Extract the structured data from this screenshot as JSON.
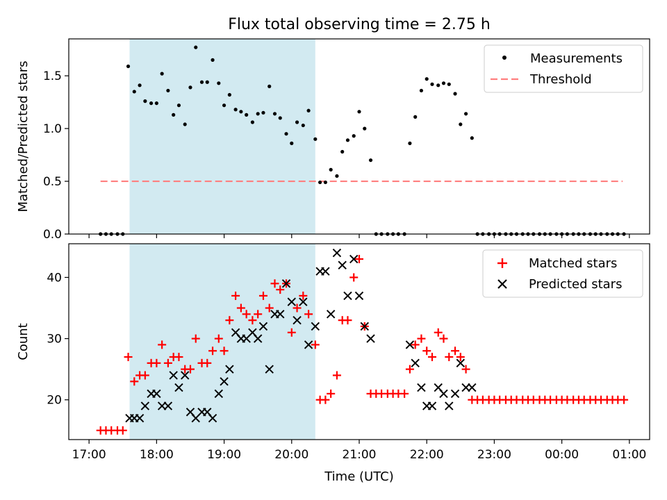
{
  "title": "Flux total observing time = 2.75 h",
  "colors": {
    "shade": "#add8e6",
    "matched": "#ff0000",
    "predicted": "#000000",
    "threshold": "#ff7f7f"
  },
  "chart_data": [
    {
      "type": "scatter",
      "panel": "top",
      "xlabel": "",
      "ylabel": "Matched/Predicted stars",
      "xlim": [
        -0.3,
        8.3
      ],
      "ylim": [
        0,
        1.85
      ],
      "yticks": [
        "0.0",
        "0.5",
        "1.0",
        "1.5"
      ],
      "legend": {
        "position": "top-right",
        "entries": [
          "Measurements",
          "Threshold"
        ]
      },
      "shaded_span": [
        0.6,
        3.35
      ],
      "threshold": {
        "value": 0.5,
        "x_range": [
          0.17,
          7.9
        ]
      },
      "series": [
        {
          "name": "Measurements",
          "marker": "dot",
          "x": [
            0.17,
            0.25,
            0.33,
            0.42,
            0.5,
            0.58,
            0.67,
            0.75,
            0.83,
            0.92,
            1.0,
            1.08,
            1.17,
            1.25,
            1.33,
            1.42,
            1.5,
            1.58,
            1.67,
            1.75,
            1.83,
            1.92,
            2.0,
            2.08,
            2.17,
            2.25,
            2.33,
            2.42,
            2.5,
            2.58,
            2.67,
            2.75,
            2.83,
            2.92,
            3.0,
            3.08,
            3.17,
            3.25,
            3.35,
            3.42,
            3.5,
            3.58,
            3.67,
            3.75,
            3.83,
            3.92,
            4.0,
            4.08,
            4.17,
            4.25,
            4.33,
            4.42,
            4.5,
            4.58,
            4.67,
            4.75,
            4.83,
            4.92,
            5.0,
            5.08,
            5.17,
            5.25,
            5.33,
            5.42,
            5.5,
            5.58,
            5.67,
            5.75,
            5.83,
            5.92,
            6.0,
            6.08,
            6.17,
            6.25,
            6.33,
            6.42,
            6.5,
            6.58,
            6.67,
            6.75,
            6.83,
            6.92,
            7.0,
            7.08,
            7.17,
            7.25,
            7.33,
            7.42,
            7.5,
            7.58,
            7.67,
            7.75,
            7.83,
            7.92
          ],
          "y": [
            0,
            0,
            0,
            0,
            0,
            1.59,
            1.35,
            1.41,
            1.26,
            1.24,
            1.24,
            1.52,
            1.36,
            1.13,
            1.22,
            1.04,
            1.39,
            1.77,
            1.44,
            1.44,
            1.65,
            1.43,
            1.22,
            1.32,
            1.18,
            1.16,
            1.13,
            1.06,
            1.14,
            1.15,
            1.4,
            1.14,
            1.1,
            0.95,
            0.86,
            1.06,
            1.03,
            1.17,
            0.9,
            0.49,
            0.49,
            0.61,
            0.55,
            0.78,
            0.89,
            0.93,
            1.16,
            1.0,
            0.7,
            0,
            0,
            0,
            0,
            0,
            0,
            0.86,
            1.11,
            1.36,
            1.47,
            1.42,
            1.41,
            1.43,
            1.42,
            1.33,
            1.04,
            1.14,
            0.91,
            0,
            0,
            0,
            0,
            0,
            0,
            0,
            0,
            0,
            0,
            0,
            0,
            0,
            0,
            0,
            0,
            0,
            0,
            0,
            0,
            0,
            0,
            0,
            0,
            0,
            0,
            0
          ]
        }
      ]
    },
    {
      "type": "scatter",
      "panel": "bottom",
      "xlabel": "Time (UTC)",
      "ylabel": "Count",
      "xlim": [
        -0.3,
        8.3
      ],
      "ylim": [
        13.5,
        45.5
      ],
      "yticks": [
        "20",
        "30",
        "40"
      ],
      "xticks": [
        "17:00",
        "18:00",
        "19:00",
        "20:00",
        "21:00",
        "22:00",
        "23:00",
        "00:00",
        "01:00"
      ],
      "legend": {
        "position": "top-right",
        "entries": [
          "Matched stars",
          "Predicted stars"
        ]
      },
      "shaded_span": [
        0.6,
        3.35
      ],
      "series": [
        {
          "name": "Matched stars",
          "marker": "plus",
          "x": [
            0.17,
            0.25,
            0.33,
            0.42,
            0.5,
            0.58,
            0.67,
            0.75,
            0.83,
            0.92,
            1.0,
            1.08,
            1.17,
            1.25,
            1.33,
            1.42,
            1.5,
            1.58,
            1.67,
            1.75,
            1.83,
            1.92,
            2.0,
            2.08,
            2.17,
            2.25,
            2.33,
            2.42,
            2.5,
            2.58,
            2.67,
            2.75,
            2.83,
            2.92,
            3.0,
            3.08,
            3.17,
            3.25,
            3.35,
            3.42,
            3.5,
            3.58,
            3.67,
            3.75,
            3.83,
            3.92,
            4.0,
            4.08,
            4.17,
            4.25,
            4.33,
            4.42,
            4.5,
            4.58,
            4.67,
            4.75,
            4.83,
            4.92,
            5.0,
            5.08,
            5.17,
            5.25,
            5.33,
            5.42,
            5.5,
            5.58,
            5.67,
            5.75,
            5.83,
            5.92,
            6.0,
            6.08,
            6.17,
            6.25,
            6.33,
            6.42,
            6.5,
            6.58,
            6.67,
            6.75,
            6.83,
            6.92,
            7.0,
            7.08,
            7.17,
            7.25,
            7.33,
            7.42,
            7.5,
            7.58,
            7.67,
            7.75,
            7.83,
            7.92
          ],
          "y": [
            15,
            15,
            15,
            15,
            15,
            27,
            23,
            24,
            24,
            26,
            26,
            29,
            26,
            27,
            27,
            25,
            25,
            30,
            26,
            26,
            28,
            30,
            28,
            33,
            37,
            35,
            34,
            33,
            34,
            37,
            35,
            39,
            38,
            39,
            31,
            35,
            37,
            34,
            29,
            20,
            20,
            21,
            24,
            33,
            33,
            40,
            43,
            32,
            21,
            21,
            21,
            21,
            21,
            21,
            21,
            25,
            29,
            30,
            28,
            27,
            31,
            30,
            27,
            28,
            27,
            25,
            20,
            20,
            20,
            20,
            20,
            20,
            20,
            20,
            20,
            20,
            20,
            20,
            20,
            20,
            20,
            20,
            20,
            20,
            20,
            20,
            20,
            20,
            20,
            20,
            20,
            20,
            20,
            20
          ]
        },
        {
          "name": "Predicted stars",
          "marker": "x",
          "x": [
            0.6,
            0.67,
            0.75,
            0.83,
            0.92,
            1.0,
            1.08,
            1.17,
            1.25,
            1.33,
            1.42,
            1.5,
            1.58,
            1.67,
            1.75,
            1.83,
            1.92,
            2.0,
            2.08,
            2.17,
            2.25,
            2.33,
            2.42,
            2.5,
            2.58,
            2.67,
            2.75,
            2.83,
            2.92,
            3.0,
            3.08,
            3.17,
            3.25,
            3.35,
            3.42,
            3.5,
            3.58,
            3.67,
            3.75,
            3.83,
            3.92,
            4.0,
            4.08,
            4.17,
            4.25,
            4.33,
            4.42,
            4.5,
            4.58,
            4.67,
            4.75,
            4.83,
            4.92,
            5.0,
            5.08,
            5.17,
            5.25,
            5.33,
            5.42,
            5.5,
            5.58,
            5.67
          ],
          "y": [
            17,
            17,
            17,
            19,
            21,
            21,
            19,
            19,
            24,
            22,
            24,
            18,
            17,
            18,
            18,
            17,
            21,
            23,
            25,
            31,
            30,
            30,
            31,
            30,
            32,
            25,
            34,
            34,
            39,
            36,
            33,
            36,
            29,
            32,
            41,
            41,
            34,
            44,
            42,
            37,
            43,
            37,
            32,
            30,
            null,
            null,
            null,
            null,
            null,
            null,
            29,
            26,
            22,
            19,
            19,
            22,
            21,
            19,
            21,
            26,
            22,
            22
          ]
        }
      ]
    }
  ]
}
